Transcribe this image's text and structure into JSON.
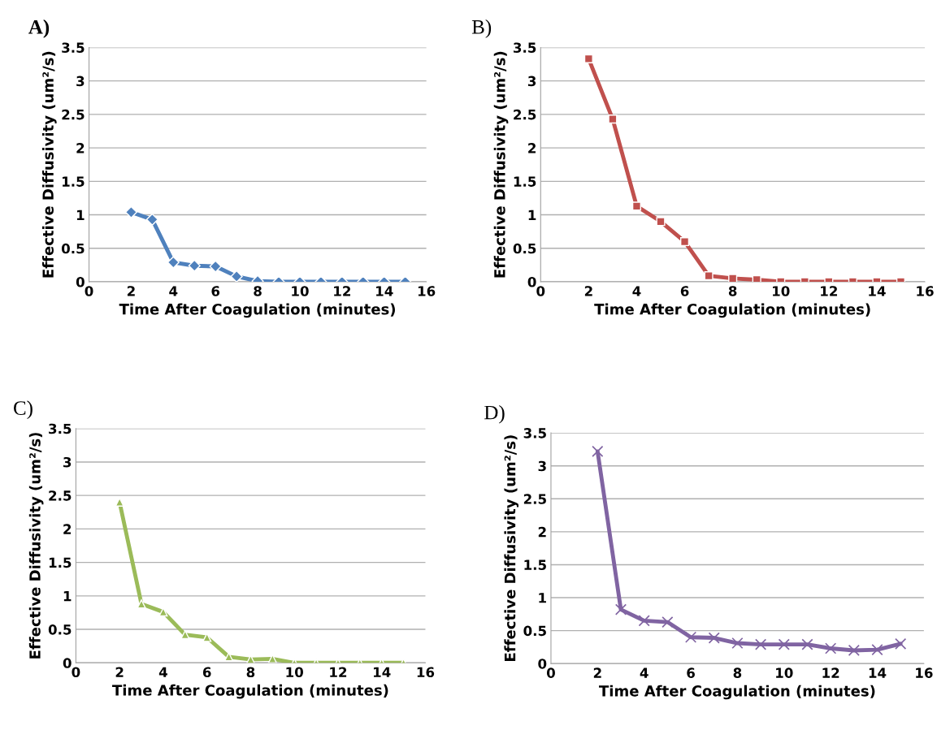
{
  "chart_data": [
    {
      "type": "line",
      "title": "A)",
      "xlabel": "Time After Coagulation (minutes)",
      "ylabel": "Effective Diffusivity (um²/s)",
      "x": [
        2,
        3,
        4,
        5,
        6,
        7,
        8,
        9,
        10,
        11,
        12,
        13,
        14,
        15
      ],
      "marker": "diamond",
      "grid": "y",
      "xlim": [
        0,
        16
      ],
      "xticks": [
        0,
        2,
        4,
        6,
        8,
        10,
        12,
        14,
        16
      ],
      "ylim": [
        0,
        3.5
      ],
      "yticks": [
        0,
        0.5,
        1,
        1.5,
        2,
        2.5,
        3,
        3.5
      ],
      "series": [
        {
          "color": "#4f81bd",
          "values": [
            1.04,
            0.93,
            0.29,
            0.24,
            0.23,
            0.08,
            0.01,
            0,
            0,
            0,
            0,
            0,
            0,
            0
          ]
        }
      ]
    },
    {
      "type": "line",
      "title": "B)",
      "xlabel": "Time After Coagulation (minutes)",
      "ylabel": "Effective Diffusivity (um²/s)",
      "x": [
        2,
        3,
        4,
        5,
        6,
        7,
        8,
        9,
        10,
        11,
        12,
        13,
        14,
        15
      ],
      "marker": "square",
      "grid": "y",
      "xlim": [
        0,
        16
      ],
      "xticks": [
        0,
        2,
        4,
        6,
        8,
        10,
        12,
        14,
        16
      ],
      "ylim": [
        0,
        3.5
      ],
      "yticks": [
        0,
        0.5,
        1,
        1.5,
        2,
        2.5,
        3,
        3.5
      ],
      "series": [
        {
          "color": "#c0504d",
          "values": [
            3.33,
            2.43,
            1.13,
            0.9,
            0.6,
            0.09,
            0.05,
            0.03,
            0,
            0,
            0,
            0,
            0,
            0
          ]
        }
      ]
    },
    {
      "type": "line",
      "title": "C)",
      "xlabel": "Time After Coagulation (minutes)",
      "ylabel": "Effective Diffusivity (um²/s)",
      "x": [
        2,
        3,
        4,
        5,
        6,
        7,
        8,
        9,
        10,
        11,
        12,
        13,
        14,
        15
      ],
      "marker": "triangle",
      "grid": "y",
      "xlim": [
        0,
        16
      ],
      "xticks": [
        0,
        2,
        4,
        6,
        8,
        10,
        12,
        14,
        16
      ],
      "ylim": [
        0,
        3.5
      ],
      "yticks": [
        0,
        0.5,
        1,
        1.5,
        2,
        2.5,
        3,
        3.5
      ],
      "series": [
        {
          "color": "#9bbb59",
          "values": [
            2.4,
            0.88,
            0.76,
            0.42,
            0.38,
            0.09,
            0.05,
            0.06,
            0,
            0,
            0,
            0,
            0,
            0
          ]
        }
      ]
    },
    {
      "type": "line",
      "title": "D)",
      "xlabel": "Time After Coagulation (minutes)",
      "ylabel": "Effective Diffusivity (um²/s)",
      "x": [
        2,
        3,
        4,
        5,
        6,
        7,
        8,
        9,
        10,
        11,
        12,
        13,
        14,
        15
      ],
      "marker": "cross",
      "grid": "y",
      "xlim": [
        0,
        16
      ],
      "xticks": [
        0,
        2,
        4,
        6,
        8,
        10,
        12,
        14,
        16
      ],
      "ylim": [
        0,
        3.5
      ],
      "yticks": [
        0,
        0.5,
        1,
        1.5,
        2,
        2.5,
        3,
        3.5
      ],
      "series": [
        {
          "color": "#8064a2",
          "values": [
            3.22,
            0.82,
            0.65,
            0.63,
            0.4,
            0.39,
            0.31,
            0.29,
            0.29,
            0.29,
            0.23,
            0.2,
            0.21,
            0.3
          ]
        }
      ]
    }
  ]
}
